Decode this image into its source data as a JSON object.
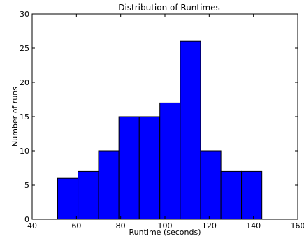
{
  "chart_data": {
    "type": "bar",
    "title": "Distribution of Runtimes",
    "xlabel": "Runtime (seconds)",
    "ylabel": "Number of runs",
    "xlim": [
      40,
      160
    ],
    "ylim": [
      0,
      30
    ],
    "xticks": [
      40,
      60,
      80,
      100,
      120,
      140,
      160
    ],
    "yticks": [
      0,
      5,
      10,
      15,
      20,
      25,
      30
    ],
    "bin_edges": [
      51.5,
      60.7,
      70.0,
      79.2,
      88.4,
      97.7,
      106.9,
      116.1,
      125.3,
      134.6,
      143.8
    ],
    "values": [
      6,
      7,
      10,
      15,
      15,
      17,
      26,
      10,
      7,
      7
    ],
    "bar_color": "#0000ff",
    "edge_color": "#000000",
    "grid": false
  }
}
